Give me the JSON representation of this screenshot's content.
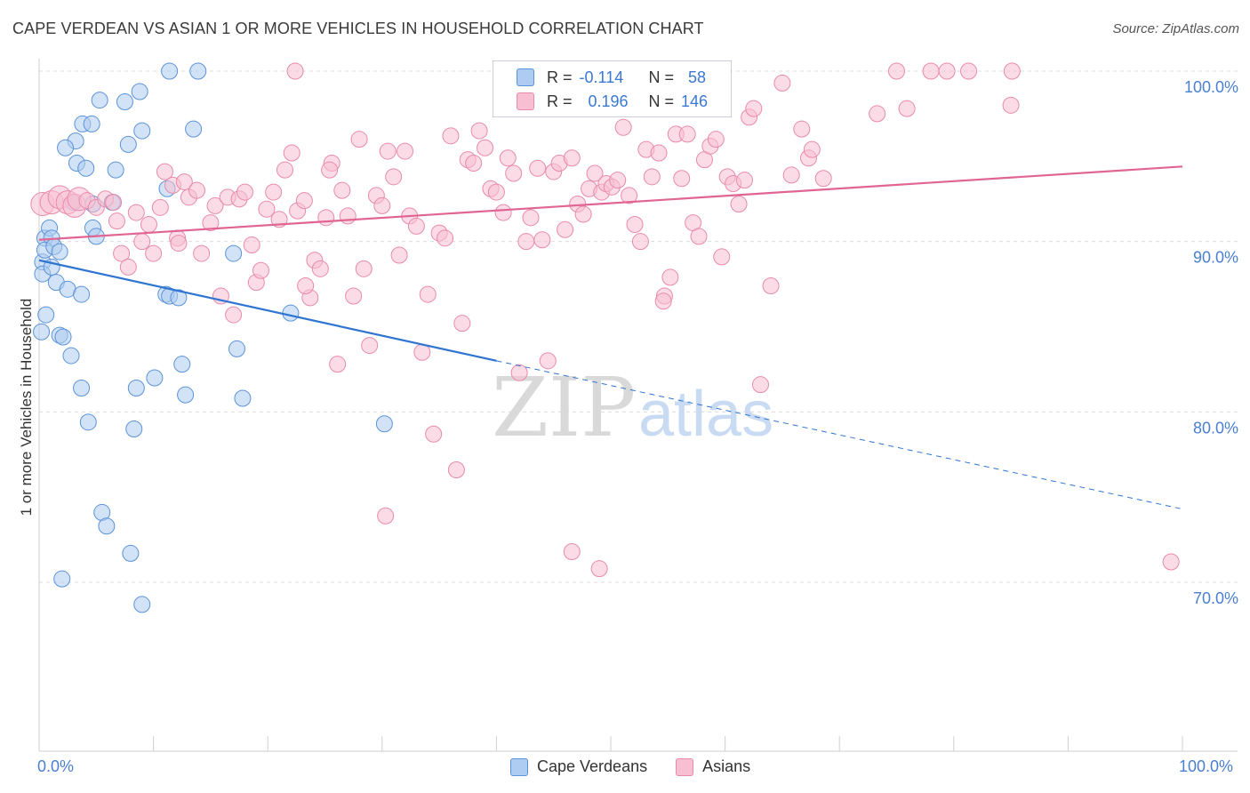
{
  "title": "CAPE VERDEAN VS ASIAN 1 OR MORE VEHICLES IN HOUSEHOLD CORRELATION CHART",
  "source": "Source: ZipAtlas.com",
  "watermark": {
    "zip": "ZIP",
    "atlas": "atlas"
  },
  "legend": {
    "rows": [
      {
        "r_label": "R =",
        "r_value": "-0.114",
        "n_label": "N =",
        "n_value": "58"
      },
      {
        "r_label": "R =",
        "r_value": "0.196",
        "n_label": "N =",
        "n_value": "146"
      }
    ]
  },
  "colors": {
    "blue_fill": "#aeccf1",
    "blue_stroke": "#5b93d8",
    "blue_line": "#2f74d0",
    "pink_fill": "#f7bfd1",
    "pink_stroke": "#e98aa9",
    "pink_line": "#e06592",
    "tick_text": "#4a7fd1",
    "grid": "#dcdcdc"
  },
  "chart_data": {
    "type": "scatter",
    "xlabel": "",
    "ylabel": "1 or more Vehicles in Household",
    "xlim": [
      0,
      100
    ],
    "ylim": [
      60,
      102
    ],
    "x_tick_labels": [
      "0.0%",
      "100.0%"
    ],
    "y_ticks": [
      70,
      80,
      90,
      100
    ],
    "y_tick_labels": [
      "70.0%",
      "80.0%",
      "90.0%",
      "100.0%"
    ],
    "grid": true,
    "legend_position": "bottom-center",
    "series": [
      {
        "name": "Cape Verdeans",
        "color": "blue",
        "trend": {
          "x": [
            0,
            40
          ],
          "y": [
            88.9,
            83.0
          ],
          "dashed_to": [
            100,
            74.3
          ]
        },
        "points": [
          [
            0.3,
            88.8
          ],
          [
            0.5,
            90.2
          ],
          [
            0.3,
            88.1
          ],
          [
            0.6,
            85.7
          ],
          [
            0.9,
            90.8
          ],
          [
            1.1,
            90.2
          ],
          [
            1.1,
            88.5
          ],
          [
            1.5,
            87.6
          ],
          [
            1.8,
            84.5
          ],
          [
            2.1,
            84.4
          ],
          [
            2.8,
            83.3
          ],
          [
            3.7,
            81.4
          ],
          [
            4.3,
            79.4
          ],
          [
            5.5,
            74.1
          ],
          [
            5.9,
            73.3
          ],
          [
            8.0,
            71.7
          ],
          [
            2.0,
            70.2
          ],
          [
            9.0,
            68.7
          ],
          [
            8.3,
            79.0
          ],
          [
            8.5,
            81.4
          ],
          [
            10.1,
            82.0
          ],
          [
            11.1,
            86.9
          ],
          [
            11.4,
            100.0
          ],
          [
            13.9,
            100.0
          ],
          [
            8.8,
            98.8
          ],
          [
            7.5,
            98.2
          ],
          [
            5.3,
            98.3
          ],
          [
            3.8,
            96.9
          ],
          [
            4.6,
            96.9
          ],
          [
            3.2,
            95.9
          ],
          [
            2.3,
            95.5
          ],
          [
            3.3,
            94.6
          ],
          [
            4.1,
            94.3
          ],
          [
            6.7,
            94.2
          ],
          [
            7.8,
            95.7
          ],
          [
            9.0,
            96.5
          ],
          [
            13.5,
            96.6
          ],
          [
            11.2,
            93.1
          ],
          [
            6.4,
            92.3
          ],
          [
            4.7,
            92.2
          ],
          [
            3.0,
            92.3
          ],
          [
            0.5,
            89.5
          ],
          [
            1.3,
            89.7
          ],
          [
            1.8,
            89.4
          ],
          [
            2.5,
            87.2
          ],
          [
            3.7,
            86.9
          ],
          [
            4.7,
            90.8
          ],
          [
            5.0,
            90.3
          ],
          [
            11.4,
            86.8
          ],
          [
            12.2,
            86.7
          ],
          [
            17.0,
            89.3
          ],
          [
            17.3,
            83.7
          ],
          [
            12.5,
            82.8
          ],
          [
            12.8,
            81.0
          ],
          [
            17.8,
            80.8
          ],
          [
            22.0,
            85.8
          ],
          [
            30.2,
            79.3
          ],
          [
            0.2,
            84.7
          ]
        ]
      },
      {
        "name": "Asians",
        "color": "pink",
        "trend": {
          "x": [
            0,
            100
          ],
          "y": [
            90.1,
            94.4
          ]
        },
        "points": [
          [
            0.3,
            92.2
          ],
          [
            1.1,
            92.3
          ],
          [
            1.8,
            92.6
          ],
          [
            2.5,
            92.3
          ],
          [
            3.1,
            92.1
          ],
          [
            3.5,
            92.5
          ],
          [
            4.2,
            92.4
          ],
          [
            5.0,
            92.0
          ],
          [
            5.8,
            92.5
          ],
          [
            6.5,
            92.3
          ],
          [
            6.8,
            91.2
          ],
          [
            7.2,
            89.3
          ],
          [
            7.8,
            88.5
          ],
          [
            8.5,
            91.7
          ],
          [
            9.0,
            90.0
          ],
          [
            9.6,
            91.0
          ],
          [
            10.0,
            89.3
          ],
          [
            10.6,
            92.0
          ],
          [
            11.0,
            94.1
          ],
          [
            11.7,
            93.3
          ],
          [
            12.1,
            90.2
          ],
          [
            12.7,
            93.5
          ],
          [
            13.1,
            92.6
          ],
          [
            13.8,
            93.0
          ],
          [
            14.2,
            89.3
          ],
          [
            15.0,
            91.1
          ],
          [
            15.4,
            92.1
          ],
          [
            15.9,
            86.8
          ],
          [
            16.5,
            92.6
          ],
          [
            17.0,
            85.7
          ],
          [
            17.5,
            92.5
          ],
          [
            18.0,
            92.9
          ],
          [
            18.6,
            89.8
          ],
          [
            19.0,
            87.6
          ],
          [
            19.4,
            88.3
          ],
          [
            19.9,
            91.9
          ],
          [
            20.5,
            92.9
          ],
          [
            21.0,
            91.3
          ],
          [
            21.5,
            94.2
          ],
          [
            22.1,
            95.2
          ],
          [
            22.6,
            91.8
          ],
          [
            23.2,
            92.4
          ],
          [
            23.7,
            86.7
          ],
          [
            24.1,
            88.9
          ],
          [
            24.6,
            88.4
          ],
          [
            25.1,
            91.4
          ],
          [
            25.6,
            94.6
          ],
          [
            26.1,
            82.8
          ],
          [
            26.5,
            93.0
          ],
          [
            27.0,
            91.5
          ],
          [
            27.5,
            86.8
          ],
          [
            28.0,
            96.0
          ],
          [
            28.4,
            88.4
          ],
          [
            28.9,
            83.9
          ],
          [
            29.5,
            92.7
          ],
          [
            30.0,
            92.1
          ],
          [
            30.5,
            95.3
          ],
          [
            31.0,
            93.8
          ],
          [
            31.5,
            89.2
          ],
          [
            32.0,
            95.3
          ],
          [
            32.4,
            91.5
          ],
          [
            33.0,
            90.9
          ],
          [
            33.5,
            83.5
          ],
          [
            34.0,
            86.9
          ],
          [
            34.5,
            78.7
          ],
          [
            35.0,
            90.5
          ],
          [
            35.5,
            90.2
          ],
          [
            36.0,
            96.2
          ],
          [
            36.5,
            76.6
          ],
          [
            37.0,
            85.2
          ],
          [
            37.5,
            94.8
          ],
          [
            38.0,
            94.6
          ],
          [
            38.5,
            96.5
          ],
          [
            39.0,
            95.5
          ],
          [
            39.5,
            93.1
          ],
          [
            40.0,
            92.9
          ],
          [
            40.6,
            91.7
          ],
          [
            41.0,
            94.9
          ],
          [
            41.5,
            94.0
          ],
          [
            42.0,
            82.3
          ],
          [
            42.6,
            90.0
          ],
          [
            43.0,
            91.4
          ],
          [
            43.6,
            94.3
          ],
          [
            44.0,
            90.1
          ],
          [
            44.5,
            83.0
          ],
          [
            45.0,
            94.1
          ],
          [
            45.5,
            94.6
          ],
          [
            46.0,
            90.7
          ],
          [
            46.6,
            94.9
          ],
          [
            47.1,
            92.2
          ],
          [
            47.6,
            91.6
          ],
          [
            48.1,
            93.1
          ],
          [
            48.6,
            94.0
          ],
          [
            49.2,
            92.9
          ],
          [
            49.6,
            93.4
          ],
          [
            50.1,
            93.2
          ],
          [
            50.6,
            93.6
          ],
          [
            51.1,
            96.7
          ],
          [
            51.6,
            92.7
          ],
          [
            52.1,
            91.0
          ],
          [
            52.6,
            90.0
          ],
          [
            53.1,
            95.4
          ],
          [
            53.6,
            93.8
          ],
          [
            54.2,
            95.2
          ],
          [
            54.7,
            86.8
          ],
          [
            55.2,
            87.9
          ],
          [
            55.7,
            96.3
          ],
          [
            56.2,
            93.7
          ],
          [
            56.7,
            96.3
          ],
          [
            57.2,
            91.1
          ],
          [
            57.7,
            90.3
          ],
          [
            58.2,
            94.8
          ],
          [
            58.7,
            95.6
          ],
          [
            59.2,
            96.0
          ],
          [
            59.7,
            89.1
          ],
          [
            60.2,
            93.8
          ],
          [
            60.7,
            93.4
          ],
          [
            61.2,
            92.2
          ],
          [
            61.7,
            93.6
          ],
          [
            62.1,
            97.3
          ],
          [
            62.5,
            97.8
          ],
          [
            63.1,
            81.6
          ],
          [
            64.0,
            87.4
          ],
          [
            65.0,
            99.3
          ],
          [
            65.8,
            93.9
          ],
          [
            66.7,
            96.6
          ],
          [
            67.3,
            94.9
          ],
          [
            67.6,
            95.4
          ],
          [
            68.6,
            93.7
          ],
          [
            73.3,
            97.5
          ],
          [
            75.9,
            97.8
          ],
          [
            75.0,
            100.0
          ],
          [
            78.0,
            100.0
          ],
          [
            79.4,
            100.0
          ],
          [
            81.3,
            100.0
          ],
          [
            85.1,
            100.0
          ],
          [
            85.0,
            98.0
          ],
          [
            22.4,
            100.0
          ],
          [
            49.5,
            99.0
          ],
          [
            23.3,
            87.4
          ],
          [
            30.3,
            73.9
          ],
          [
            49.0,
            70.8
          ],
          [
            99.0,
            71.2
          ],
          [
            54.6,
            86.5
          ],
          [
            12.2,
            89.9
          ],
          [
            25.4,
            94.2
          ],
          [
            46.6,
            71.8
          ]
        ]
      }
    ]
  },
  "bottom_legend": [
    {
      "label": "Cape Verdeans",
      "color": "blue"
    },
    {
      "label": "Asians",
      "color": "pink"
    }
  ]
}
